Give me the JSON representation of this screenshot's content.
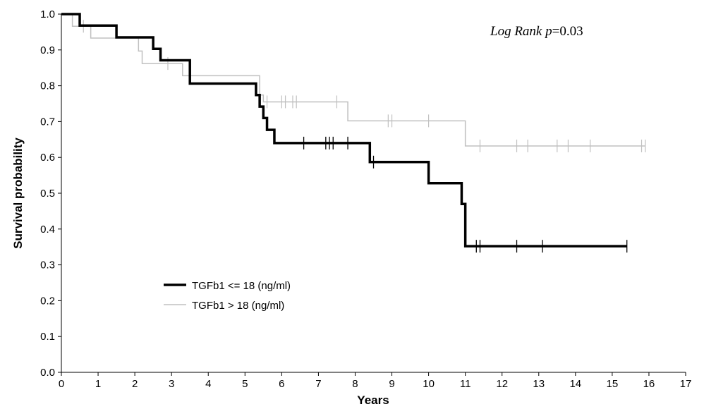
{
  "chart_data": {
    "type": "line",
    "step": true,
    "xlabel": "Years",
    "ylabel": "Survival probability",
    "xlim": [
      0,
      17
    ],
    "ylim": [
      0,
      1
    ],
    "x_ticks": [
      0,
      1,
      2,
      3,
      4,
      5,
      6,
      7,
      8,
      9,
      10,
      11,
      12,
      13,
      14,
      15,
      16,
      17
    ],
    "y_ticks": [
      "0.0",
      "0.1",
      "0.2",
      "0.3",
      "0.4",
      "0.5",
      "0.6",
      "0.7",
      "0.8",
      "0.9",
      "1.0"
    ],
    "grid": false,
    "legend_position": "lower-left",
    "annotation": {
      "italic_part": "Log Rank p",
      "value_part": "=0.03"
    },
    "series": [
      {
        "name": "TGFb1 <= 18 (ng/ml)",
        "color": "#000000",
        "steps": [
          [
            0,
            1.0
          ],
          [
            0.5,
            0.968
          ],
          [
            1.5,
            0.935
          ],
          [
            2.5,
            0.903
          ],
          [
            2.7,
            0.871
          ],
          [
            3.5,
            0.806
          ],
          [
            5.3,
            0.774
          ],
          [
            5.4,
            0.742
          ],
          [
            5.5,
            0.71
          ],
          [
            5.6,
            0.677
          ],
          [
            5.8,
            0.64
          ],
          [
            8.4,
            0.587
          ],
          [
            10.0,
            0.528
          ],
          [
            10.9,
            0.47
          ],
          [
            11.0,
            0.352
          ],
          [
            15.4,
            0.352
          ]
        ],
        "censored": [
          [
            6.6,
            0.64
          ],
          [
            7.2,
            0.64
          ],
          [
            7.3,
            0.64
          ],
          [
            7.4,
            0.64
          ],
          [
            7.8,
            0.64
          ],
          [
            8.5,
            0.587
          ],
          [
            11.3,
            0.352
          ],
          [
            11.4,
            0.352
          ],
          [
            12.4,
            0.352
          ],
          [
            13.1,
            0.352
          ],
          [
            15.4,
            0.352
          ]
        ]
      },
      {
        "name": "TGFb1 > 18 (ng/ml)",
        "color": "#c0c0c0",
        "steps": [
          [
            0,
            1.0
          ],
          [
            0.3,
            0.966
          ],
          [
            0.8,
            0.933
          ],
          [
            2.1,
            0.897
          ],
          [
            2.2,
            0.862
          ],
          [
            3.3,
            0.828
          ],
          [
            5.4,
            0.774
          ],
          [
            5.5,
            0.755
          ],
          [
            7.8,
            0.702
          ],
          [
            11.0,
            0.632
          ],
          [
            15.9,
            0.632
          ]
        ],
        "censored": [
          [
            0.6,
            0.966
          ],
          [
            2.9,
            0.862
          ],
          [
            5.6,
            0.755
          ],
          [
            6.0,
            0.755
          ],
          [
            6.1,
            0.755
          ],
          [
            6.3,
            0.755
          ],
          [
            6.4,
            0.755
          ],
          [
            7.5,
            0.755
          ],
          [
            8.9,
            0.702
          ],
          [
            9.0,
            0.702
          ],
          [
            10.0,
            0.702
          ],
          [
            11.4,
            0.632
          ],
          [
            12.4,
            0.632
          ],
          [
            12.7,
            0.632
          ],
          [
            13.5,
            0.632
          ],
          [
            13.8,
            0.632
          ],
          [
            14.4,
            0.632
          ],
          [
            15.8,
            0.632
          ],
          [
            15.9,
            0.632
          ]
        ]
      }
    ]
  }
}
